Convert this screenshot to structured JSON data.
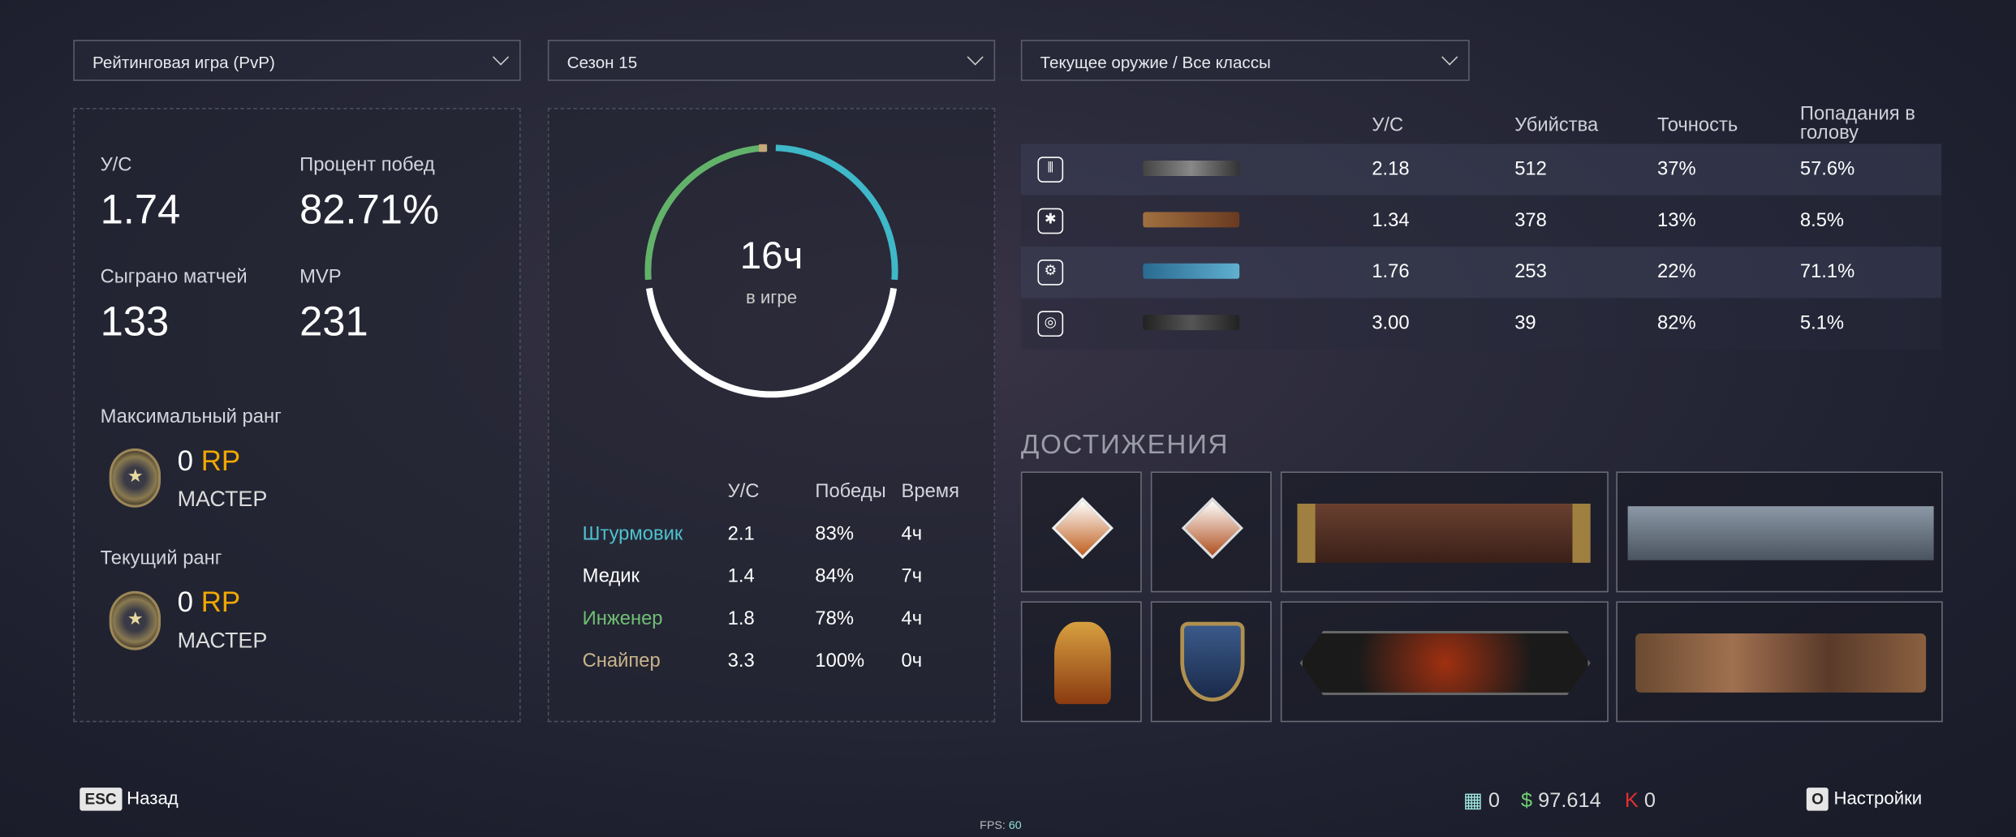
{
  "filters": {
    "mode": "Рейтинговая игра (PvP)",
    "season": "Сезон 15",
    "weapon": "Текущее оружие / Все классы"
  },
  "summary": {
    "kd_label": "У/С",
    "kd": "1.74",
    "winrate_label": "Процент побед",
    "winrate": "82.71%",
    "matches_label": "Сыграно матчей",
    "matches": "133",
    "mvp_label": "MVP",
    "mvp": "231",
    "max_rank_label": "Максимальный ранг",
    "max_rank_rp": "0",
    "max_rank_name": "МАСТЕР",
    "cur_rank_label": "Текущий ранг",
    "cur_rank_rp": "0",
    "cur_rank_name": "МАСТЕР",
    "rp_unit": "RP"
  },
  "playtime": {
    "value": "16ч",
    "label": "в игре",
    "ring": [
      {
        "class": "Штурмовик",
        "hours": 4,
        "color": "#3fb8c8"
      },
      {
        "class": "Медик",
        "hours": 7,
        "color": "#ffffff"
      },
      {
        "class": "Инженер",
        "hours": 4,
        "color": "#62b26a"
      },
      {
        "class": "Снайпер",
        "hours": 0,
        "color": "#c8a878"
      }
    ]
  },
  "class_table": {
    "headers": [
      "У/С",
      "Победы",
      "Время"
    ],
    "rows": [
      {
        "name": "Штурмовик",
        "kd": "2.1",
        "wins": "83%",
        "time": "4ч",
        "color": "#4fc1cf"
      },
      {
        "name": "Медик",
        "kd": "1.4",
        "wins": "84%",
        "time": "7ч",
        "color": "#ffffff"
      },
      {
        "name": "Инженер",
        "kd": "1.8",
        "wins": "78%",
        "time": "4ч",
        "color": "#6fbf74"
      },
      {
        "name": "Снайпер",
        "kd": "3.3",
        "wins": "100%",
        "time": "0ч",
        "color": "#c9b48a"
      }
    ]
  },
  "weapons": {
    "headers": [
      "У/С",
      "Убийства",
      "Точность",
      "Попадания в голову"
    ],
    "rows": [
      {
        "class_icon": "rifleman-ammo-icon",
        "kd": "2.18",
        "kills": "512",
        "accuracy": "37%",
        "headshots": "57.6%"
      },
      {
        "class_icon": "medic-icon",
        "kd": "1.34",
        "kills": "378",
        "accuracy": "13%",
        "headshots": "8.5%"
      },
      {
        "class_icon": "engineer-gear-icon",
        "kd": "1.76",
        "kills": "253",
        "accuracy": "22%",
        "headshots": "71.1%"
      },
      {
        "class_icon": "sniper-target-icon",
        "kd": "3.00",
        "kills": "39",
        "accuracy": "82%",
        "headshots": "5.1%"
      }
    ]
  },
  "achievements": {
    "title": "ДОСТИЖЕНИЯ"
  },
  "footer": {
    "esc_key": "ESC",
    "back": "Назад",
    "currency1": "0",
    "currency2": "97.614",
    "currency3": "0",
    "settings_key": "O",
    "settings": "Настройки",
    "fps_label": "FPS:",
    "fps": "60"
  }
}
